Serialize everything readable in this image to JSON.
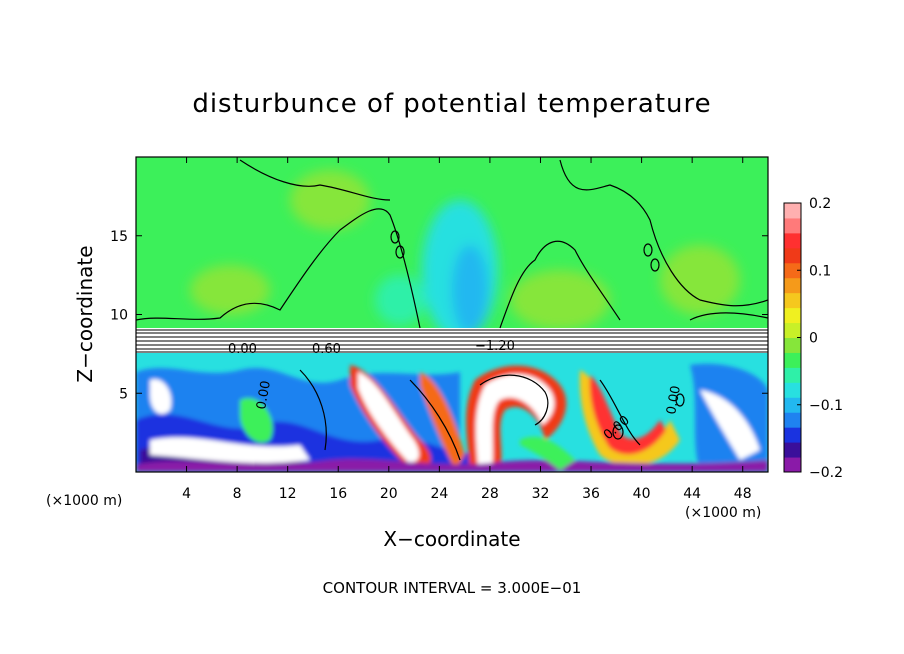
{
  "chart_data": {
    "type": "heatmap",
    "title": "disturbunce of potential temperature",
    "xlabel": "X−coordinate",
    "ylabel": "Z−coordinate",
    "x_unit": "(×1000 m)",
    "x_unit_right": "(×1000 m)",
    "xlim": [
      0,
      50
    ],
    "ylim": [
      0,
      20
    ],
    "x_ticks": [
      4,
      8,
      12,
      16,
      20,
      24,
      28,
      32,
      36,
      40,
      44,
      48
    ],
    "y_ticks": [
      5,
      10,
      15
    ],
    "colorbar": {
      "range": [
        -0.2,
        0.2
      ],
      "ticks": [
        0.2,
        0.1,
        0,
        -0.1,
        -0.2
      ],
      "tick_labels": [
        "0.2",
        "0.1",
        "0",
        "−0.1",
        "−0.2"
      ],
      "colors": [
        "#8a1aa8",
        "#3a0f9a",
        "#1a33e0",
        "#1f82f0",
        "#22b8f0",
        "#28e0e0",
        "#2ff0a8",
        "#3cf05a",
        "#86e63a",
        "#c8f028",
        "#f0f020",
        "#f5c81e",
        "#f59a1a",
        "#f56a18",
        "#f03a18",
        "#ff3030",
        "#ff7a7a",
        "#ffb0b0"
      ]
    },
    "contour_labels": [
      "0.00",
      "0.60",
      "−1.20",
      "0.00",
      "0.00",
      "0.00"
    ],
    "contour_interval_text": "CONTOUR INTERVAL = 3.000E−01",
    "grid": false,
    "legend": "colorbar-right"
  }
}
